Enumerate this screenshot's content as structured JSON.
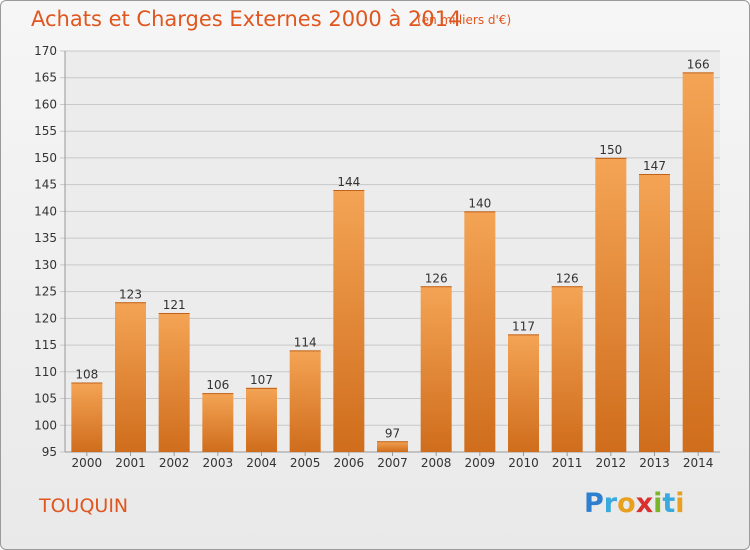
{
  "header": {
    "title": "Achats et Charges Externes 2000 à 2014",
    "unit": "(en milliers d'€)"
  },
  "commune": "TOUQUIN",
  "logo": {
    "text": "Proxiti",
    "letters": [
      {
        "ch": "P",
        "color": "#2f7fd0"
      },
      {
        "ch": "r",
        "color": "#39a9de"
      },
      {
        "ch": "o",
        "color": "#e8a020"
      },
      {
        "ch": "x",
        "color": "#d93030"
      },
      {
        "ch": "i",
        "color": "#7bb62a"
      },
      {
        "ch": "t",
        "color": "#39a9de"
      },
      {
        "ch": "i",
        "color": "#e8a020"
      }
    ]
  },
  "colors": {
    "accent": "#e0561f",
    "bar_top": "#f4a455",
    "bar_bottom": "#cf6d1c",
    "grid": "#c8c8c8"
  },
  "chart_data": {
    "type": "bar",
    "title": "Achats et Charges Externes 2000 à 2014",
    "subtitle": "(en milliers d'€)",
    "categories": [
      "2000",
      "2001",
      "2002",
      "2003",
      "2004",
      "2005",
      "2006",
      "2007",
      "2008",
      "2009",
      "2010",
      "2011",
      "2012",
      "2013",
      "2014"
    ],
    "values": [
      108,
      123,
      121,
      106,
      107,
      114,
      144,
      97,
      126,
      140,
      117,
      126,
      150,
      147,
      166
    ],
    "ylim": [
      95,
      170
    ],
    "yticks": [
      95,
      100,
      105,
      110,
      115,
      120,
      125,
      130,
      135,
      140,
      145,
      150,
      155,
      160,
      165,
      170
    ],
    "grid": true,
    "legend": "none"
  }
}
